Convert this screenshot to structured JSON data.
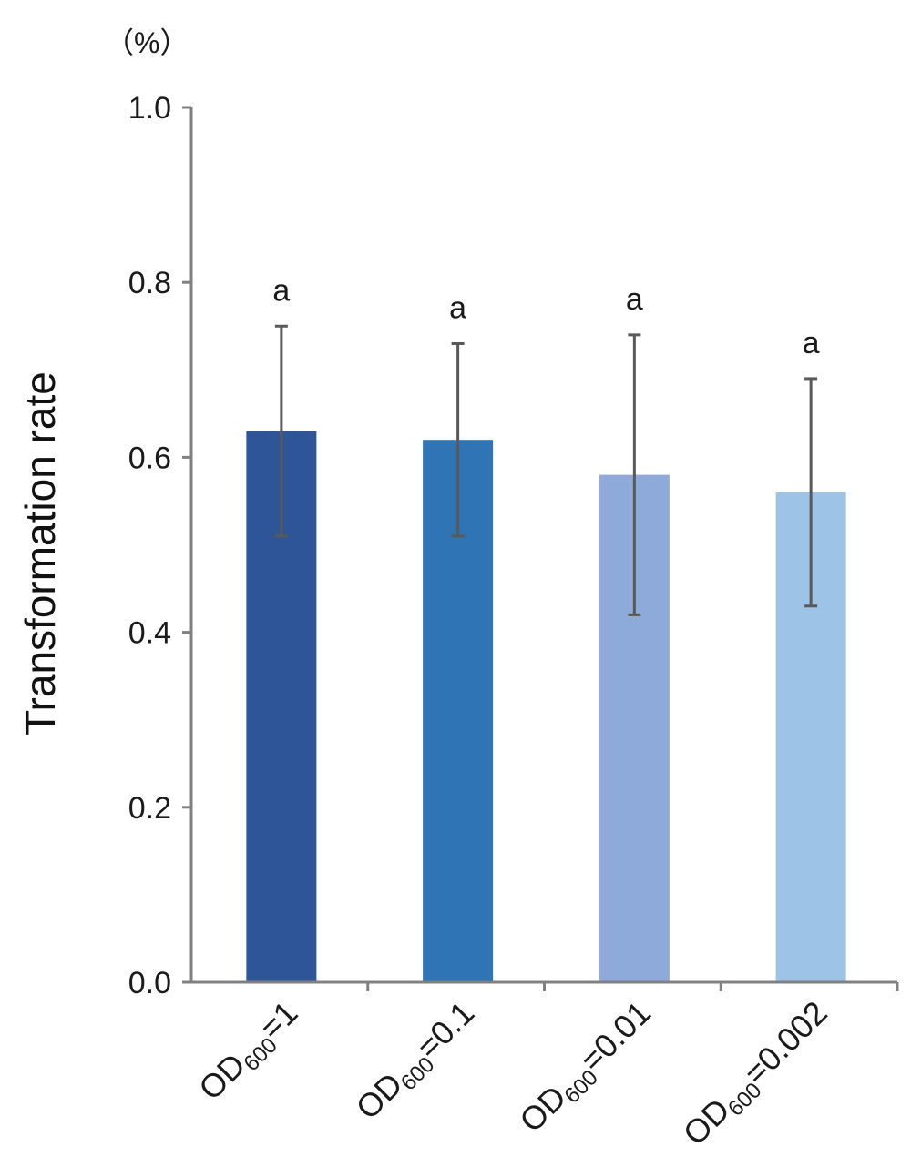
{
  "chart_data": {
    "type": "bar",
    "unit_label": "（%）",
    "ylabel": "Transformation rate",
    "ylim": [
      0,
      1.0
    ],
    "yticks": [
      0.0,
      0.2,
      0.4,
      0.6,
      0.8,
      1.0
    ],
    "ytick_labels": [
      "0.0",
      "0.2",
      "0.4",
      "0.6",
      "0.8",
      "1.0"
    ],
    "categories": [
      {
        "base": "OD",
        "sub": "600",
        "suffix": "=1"
      },
      {
        "base": "OD",
        "sub": "600",
        "suffix": "=0.1"
      },
      {
        "base": "OD",
        "sub": "600",
        "suffix": "=0.01"
      },
      {
        "base": "OD",
        "sub": "600",
        "suffix": "=0.002"
      }
    ],
    "values": [
      0.63,
      0.62,
      0.58,
      0.56
    ],
    "error_low": [
      0.51,
      0.51,
      0.42,
      0.43
    ],
    "error_high": [
      0.75,
      0.73,
      0.74,
      0.69
    ],
    "significance": [
      "a",
      "a",
      "a",
      "a"
    ],
    "bar_colors": [
      "#2e5597",
      "#2f74b5",
      "#8eaadb",
      "#9dc3e6"
    ],
    "axis_color": "#808080",
    "error_color": "#595959",
    "grid": false,
    "legend": "none"
  }
}
